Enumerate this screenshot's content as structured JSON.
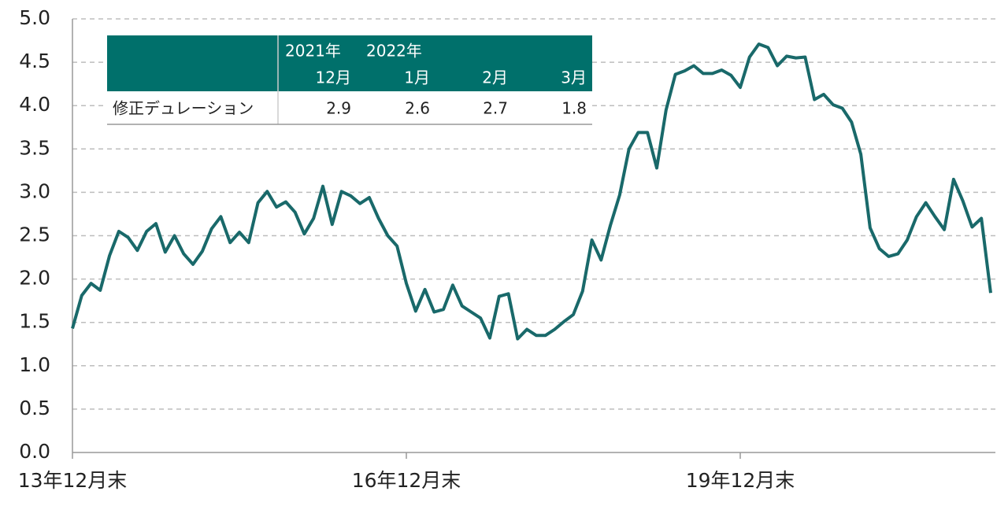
{
  "chart_data": {
    "type": "line",
    "categories": [
      "13年12月末",
      null,
      null,
      null,
      null,
      null,
      null,
      null,
      null,
      null,
      null,
      null,
      null,
      null,
      null,
      null,
      null,
      null,
      null,
      null,
      null,
      null,
      null,
      null,
      null,
      null,
      null,
      null,
      null,
      null,
      null,
      null,
      null,
      null,
      null,
      null,
      "16年12月末",
      null,
      null,
      null,
      null,
      null,
      null,
      null,
      null,
      null,
      null,
      null,
      null,
      null,
      null,
      null,
      null,
      null,
      null,
      null,
      null,
      null,
      null,
      null,
      null,
      null,
      null,
      null,
      null,
      null,
      null,
      null,
      null,
      null,
      null,
      null,
      "19年12月末",
      null,
      null,
      null,
      null,
      null,
      null,
      null,
      null,
      null,
      null,
      null,
      null,
      null,
      null,
      null,
      null,
      null,
      null,
      null,
      null,
      null,
      null,
      null,
      null,
      null,
      null,
      null
    ],
    "series": [
      {
        "color": "#19696a",
        "values": [
          1.43,
          1.81,
          1.95,
          1.87,
          2.27,
          2.55,
          2.48,
          2.33,
          2.55,
          2.64,
          2.31,
          2.5,
          2.29,
          2.17,
          2.32,
          2.58,
          2.72,
          2.42,
          2.54,
          2.42,
          2.88,
          3.01,
          2.83,
          2.89,
          2.77,
          2.52,
          2.7,
          3.07,
          2.63,
          3.01,
          2.96,
          2.87,
          2.94,
          2.7,
          2.5,
          2.38,
          1.95,
          1.63,
          1.88,
          1.62,
          1.65,
          1.93,
          1.69,
          1.62,
          1.55,
          1.32,
          1.8,
          1.83,
          1.31,
          1.42,
          1.35,
          1.35,
          1.42,
          1.51,
          1.59,
          1.86,
          2.45,
          2.22,
          2.62,
          2.97,
          3.5,
          3.69,
          3.69,
          3.28,
          3.95,
          4.36,
          4.4,
          4.46,
          4.37,
          4.37,
          4.41,
          4.35,
          4.21,
          4.56,
          4.71,
          4.67,
          4.46,
          4.57,
          4.55,
          4.56,
          4.07,
          4.13,
          4.01,
          3.97,
          3.81,
          3.44,
          2.59,
          2.35,
          2.26,
          2.29,
          2.45,
          2.72,
          2.88,
          2.72,
          2.57,
          3.15,
          2.9,
          2.6,
          2.7,
          1.84
        ]
      }
    ],
    "ylim": [
      0,
      5
    ],
    "yticks": [
      {
        "value": 0,
        "label": "0.0"
      },
      {
        "value": 0.5,
        "label": "0.5"
      },
      {
        "value": 1,
        "label": "1.0"
      },
      {
        "value": 1.5,
        "label": "1.5"
      },
      {
        "value": 2,
        "label": "2.0"
      },
      {
        "value": 2.5,
        "label": "2.5"
      },
      {
        "value": 3,
        "label": "3.0"
      },
      {
        "value": 3.5,
        "label": "3.5"
      },
      {
        "value": 4,
        "label": "4.0"
      },
      {
        "value": 4.5,
        "label": "4.5"
      },
      {
        "value": 5,
        "label": "5.0"
      }
    ],
    "grid": true,
    "table": {
      "year_headers": [
        "2021年",
        "2022年"
      ],
      "month_headers": [
        "12月",
        "1月",
        "2月",
        "3月"
      ],
      "row_label": "修正デュレーション",
      "values": [
        2.9,
        2.6,
        2.7,
        1.8
      ]
    }
  }
}
